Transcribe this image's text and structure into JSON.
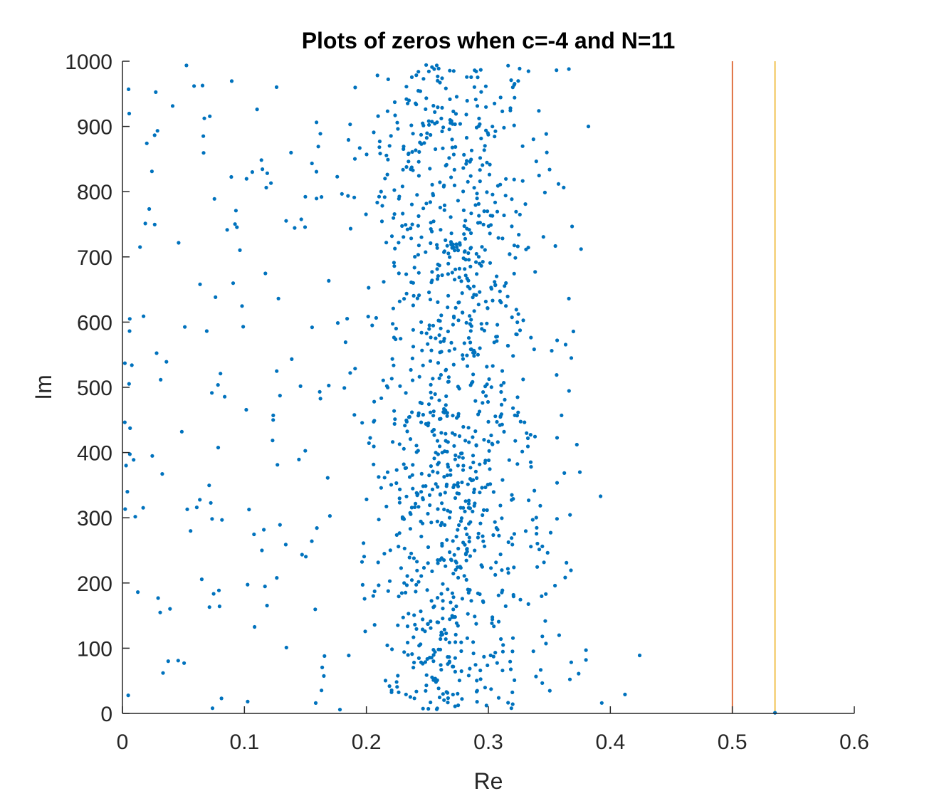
{
  "chart_data": {
    "type": "scatter",
    "title": "Plots of zeros when c=-4 and N=11",
    "xlabel": "Re",
    "ylabel": "Im",
    "xlim": [
      0,
      0.6
    ],
    "ylim": [
      0,
      1000
    ],
    "xticks": [
      "0",
      "0.1",
      "0.2",
      "0.3",
      "0.4",
      "0.5",
      "0.6"
    ],
    "yticks": [
      "0",
      "100",
      "200",
      "300",
      "400",
      "500",
      "600",
      "700",
      "800",
      "900",
      "1000"
    ],
    "grid": false,
    "colors": {
      "points": "#0072BD",
      "line_1": "#D95319",
      "line_2": "#EDB120"
    },
    "vertical_lines": [
      {
        "x": 0.5,
        "color": "#D95319"
      },
      {
        "x": 0.535,
        "color": "#EDB120"
      }
    ],
    "series": [
      {
        "points_sample": [
          [
            0.424,
            89
          ],
          [
            0.412,
            29
          ],
          [
            0.393,
            16
          ],
          [
            0.392,
            333
          ],
          [
            0.382,
            900
          ],
          [
            0.38,
            97
          ],
          [
            0.38,
            82
          ],
          [
            0.376,
            712
          ],
          [
            0.375,
            370
          ],
          [
            0.374,
            61
          ],
          [
            0.368,
            545
          ],
          [
            0.366,
            988
          ],
          [
            0.366,
            636
          ],
          [
            0.364,
            231
          ],
          [
            0.36,
            457
          ],
          [
            0.358,
            120
          ],
          [
            0.356,
            519
          ],
          [
            0.535,
            1
          ],
          [
            0.005,
            957
          ],
          [
            0.003,
            380
          ],
          [
            0.002,
            537
          ],
          [
            0.004,
            340
          ],
          [
            0.006,
            605
          ]
        ],
        "distribution": {
          "count": 1300,
          "x_band": [
            0.0,
            0.4
          ],
          "dense_band": [
            0.18,
            0.34
          ],
          "peak": 0.27,
          "y_range": [
            0,
            1000
          ]
        }
      }
    ]
  }
}
